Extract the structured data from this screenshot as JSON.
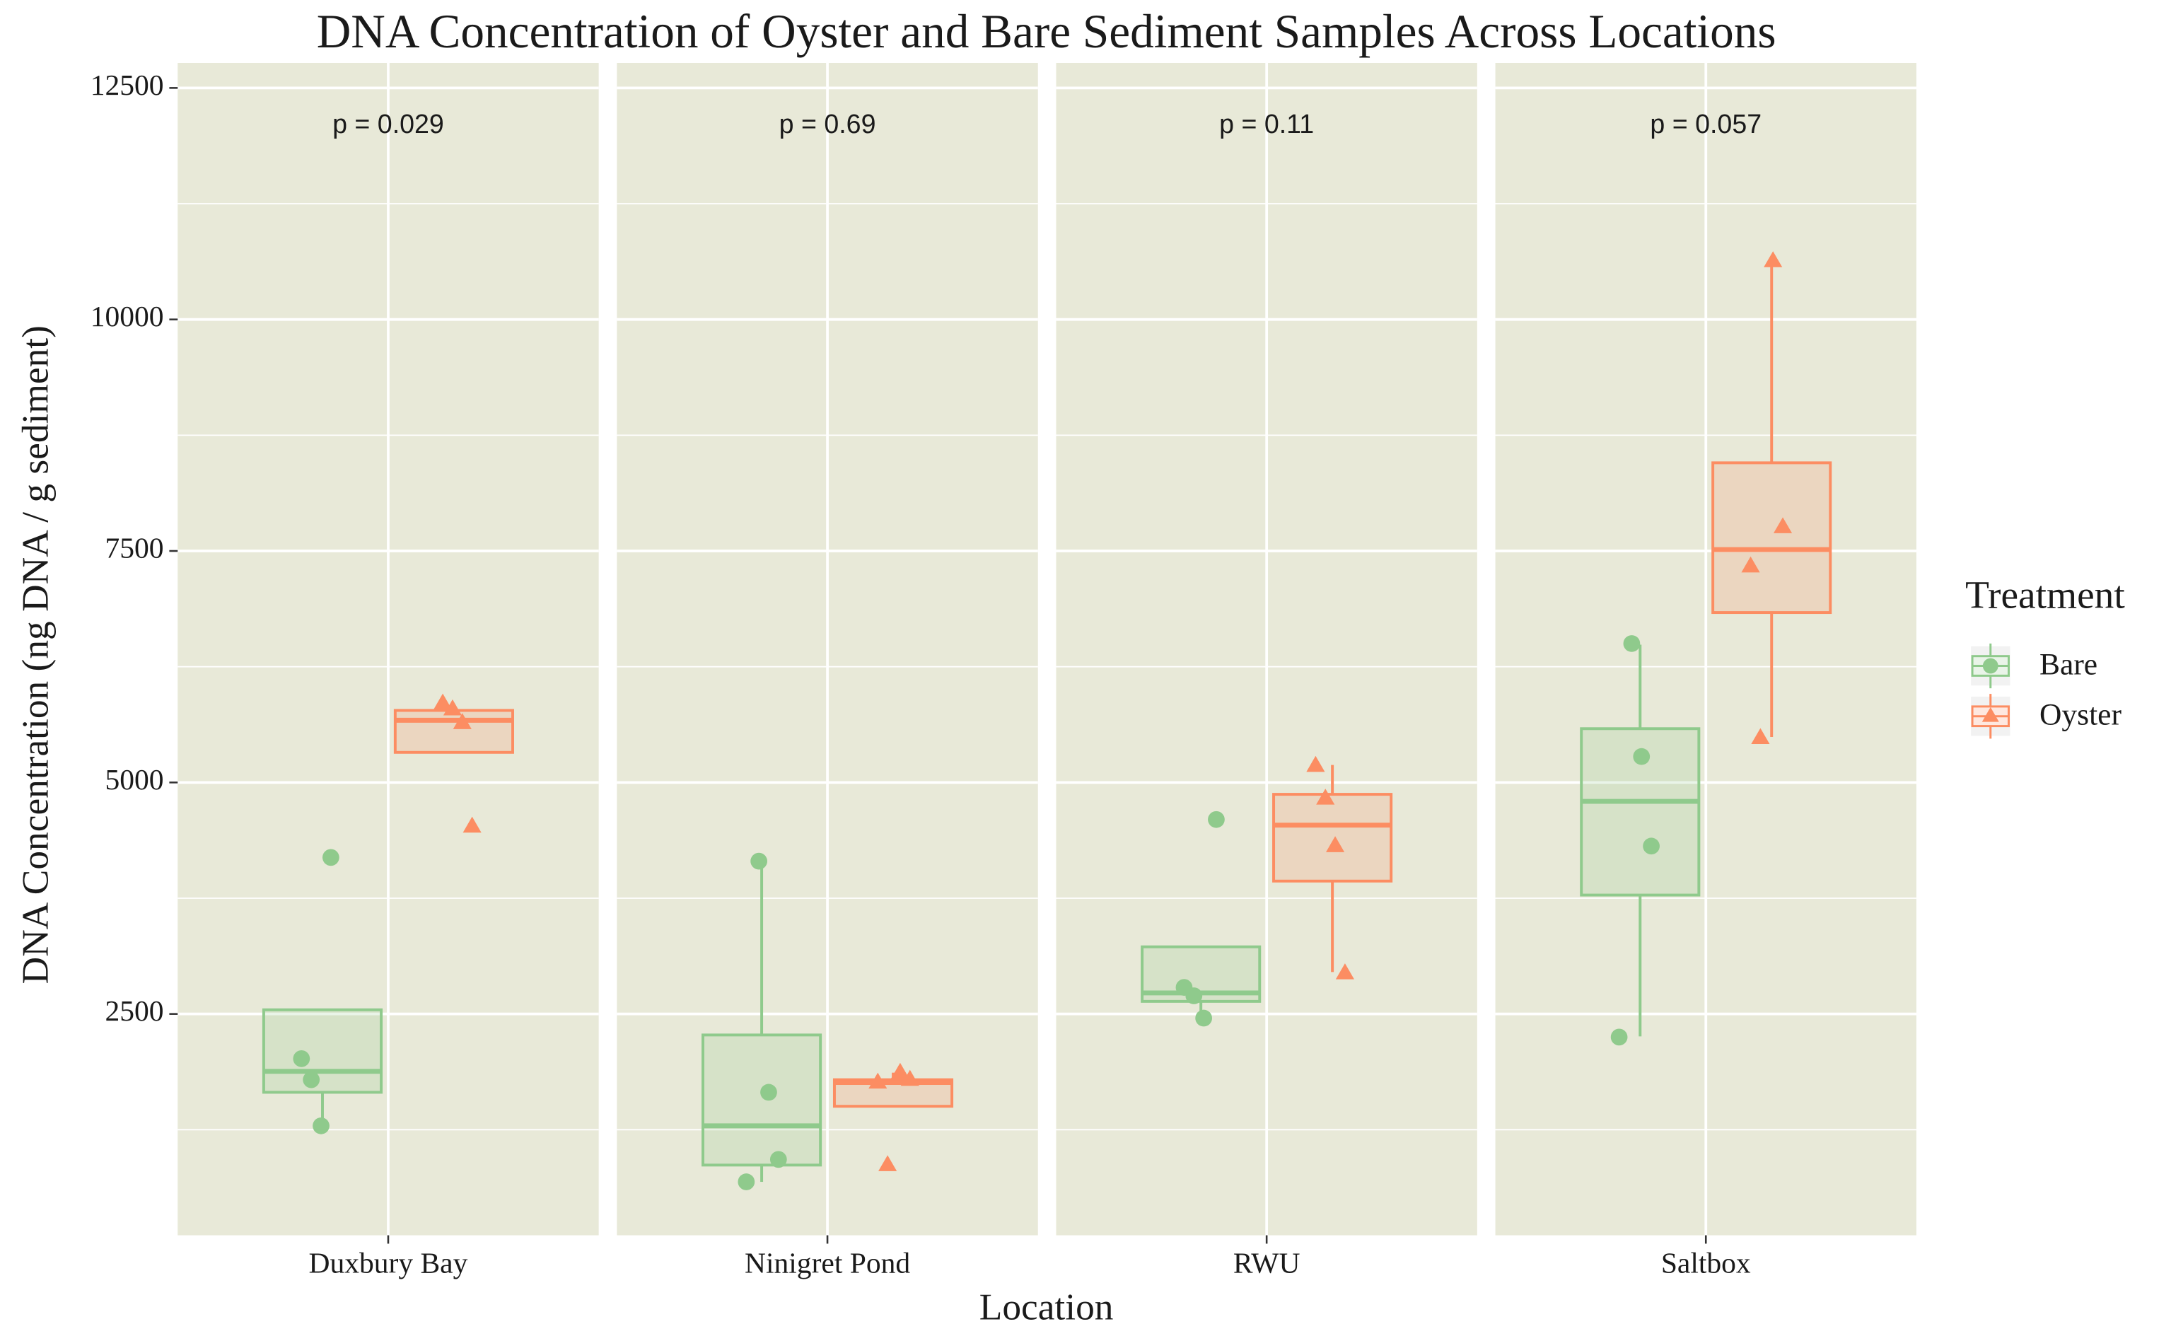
{
  "chart_data": {
    "type": "box",
    "title": "DNA Concentration of Oyster and Bare Sediment Samples Across Locations",
    "x_label": "Location",
    "y_label": "DNA Concentration (ng DNA / g sediment)",
    "legend_title": "Treatment",
    "categories": [
      "Duxbury Bay",
      "Ninigret Pond",
      "RWU",
      "Saltbox"
    ],
    "annotations": [
      "p = 0.029",
      "p = 0.69",
      "p = 0.11",
      "p = 0.057"
    ],
    "ylim": [
      110,
      12770
    ],
    "yticks": [
      2500,
      5000,
      7500,
      10000,
      12500
    ],
    "grid": true,
    "panel_background": "#e8e9d8",
    "series": [
      {
        "name": "Bare",
        "color": "#8fca8c",
        "shape": "circle",
        "boxes": [
          {
            "whisker_low": 1290,
            "q1": 1654,
            "median": 1880,
            "q3": 2545,
            "whisker_high": 2545
          },
          {
            "whisker_low": 687,
            "q1": 868,
            "median": 1292,
            "q3": 2273,
            "whisker_high": 4131
          },
          {
            "whisker_low": 2455,
            "q1": 2636,
            "median": 2727,
            "q3": 3225,
            "whisker_high": 3225
          },
          {
            "whisker_low": 2258,
            "q1": 3784,
            "median": 4796,
            "q3": 5581,
            "whisker_high": 6488
          }
        ],
        "points": [
          [
            2017,
            1790,
            1292,
            4190
          ],
          [
            4150,
            1654,
            929,
            687
          ],
          [
            4600,
            2787,
            2696,
            2455
          ],
          [
            6500,
            5280,
            4313,
            2250
          ]
        ]
      },
      {
        "name": "Oyster",
        "color": "#fc8d62",
        "shape": "triangle",
        "boxes": [
          {
            "whisker_low": 5325,
            "q1": 5325,
            "median": 5672,
            "q3": 5778,
            "whisker_high": 5778
          },
          {
            "whisker_low": 1503,
            "q1": 1503,
            "median": 1760,
            "q3": 1790,
            "whisker_high": 1866
          },
          {
            "whisker_low": 2953,
            "q1": 3935,
            "median": 4539,
            "q3": 4872,
            "whisker_high": 5189
          },
          {
            "whisker_low": 5491,
            "q1": 6835,
            "median": 7515,
            "q3": 8452,
            "whisker_high": 10627
          }
        ],
        "points": [
          [
            5853,
            5790,
            5642,
            4524
          ],
          [
            1866,
            1790,
            1760,
            868
          ],
          [
            5180,
            4826,
            4313,
            2940
          ],
          [
            10630,
            7757,
            7334,
            5480
          ]
        ]
      }
    ]
  }
}
